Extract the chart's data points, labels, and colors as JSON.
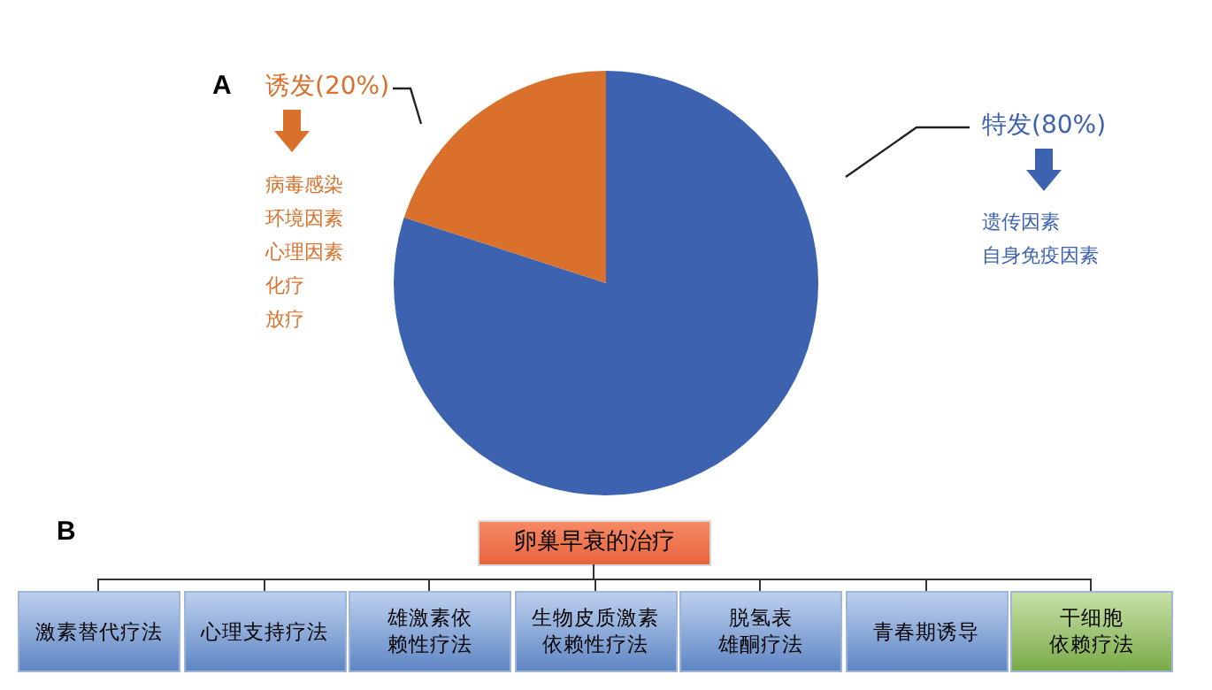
{
  "chart_data": [
    {
      "type": "pie",
      "categories": [
        "特发(80%)",
        "诱发(20%)"
      ],
      "values": [
        80,
        20
      ],
      "colors": [
        "#3d63b0",
        "#d9712c"
      ],
      "annotations": [
        "A",
        "遗传因素",
        "自身免疫因素",
        "病毒感染",
        "环境因素",
        "心理因素",
        "化疗",
        "放疗"
      ]
    },
    {
      "type": "other",
      "title": "卵巢早衰的治疗",
      "annotations": [
        "B",
        "激素替代疗法",
        "心理支持疗法",
        "雄激素依赖性疗法",
        "生物皮质激素依赖性疗法",
        "脱氢表雄酮疗法",
        "青春期诱导",
        "干细胞依赖疗法"
      ]
    }
  ]
}
